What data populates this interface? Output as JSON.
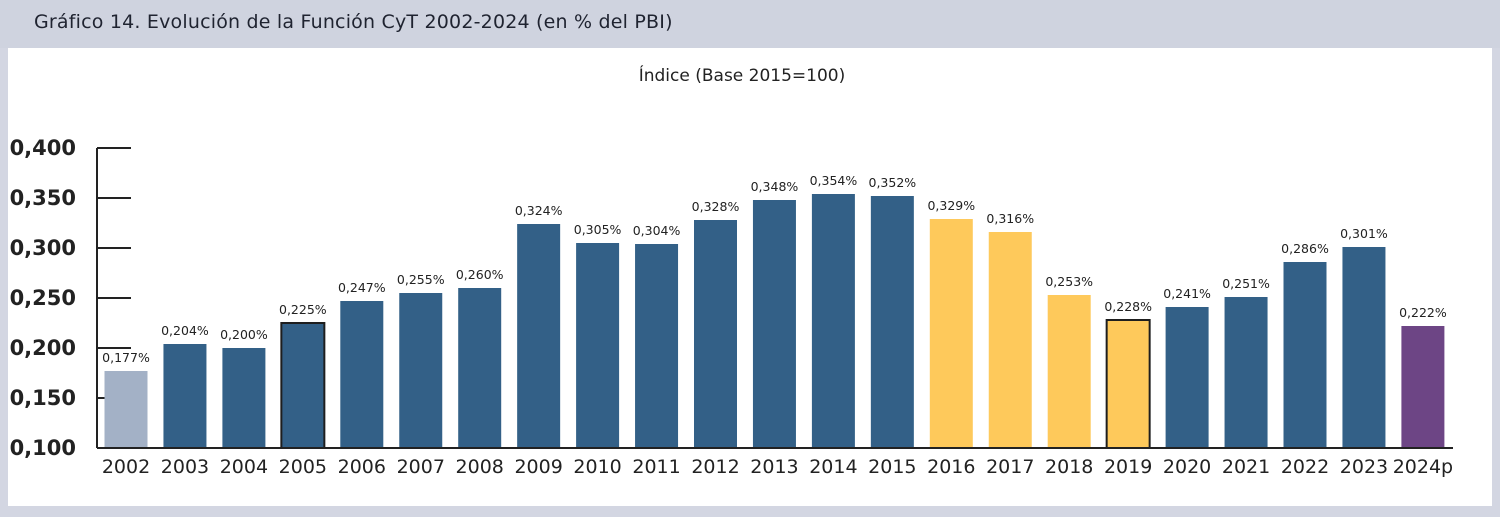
{
  "title": "Gráfico 14. Evolución de la Función CyT 2002-2024 (en % del PBI)",
  "chart_data": {
    "type": "bar",
    "subtitle": "Índice (Base 2015=100)",
    "categories": [
      "2002",
      "2003",
      "2004",
      "2005",
      "2006",
      "2007",
      "2008",
      "2009",
      "2010",
      "2011",
      "2012",
      "2013",
      "2014",
      "2015",
      "2016",
      "2017",
      "2018",
      "2019",
      "2020",
      "2021",
      "2022",
      "2023",
      "2024p"
    ],
    "values": [
      0.177,
      0.204,
      0.2,
      0.225,
      0.247,
      0.255,
      0.26,
      0.324,
      0.305,
      0.304,
      0.328,
      0.348,
      0.354,
      0.352,
      0.329,
      0.316,
      0.253,
      0.228,
      0.241,
      0.251,
      0.286,
      0.301,
      0.222
    ],
    "data_labels": [
      "0,177%",
      "0,204%",
      "0,200%",
      "0,225%",
      "0,247%",
      "0,255%",
      "0,260%",
      "0,324%",
      "0,305%",
      "0,304%",
      "0,328%",
      "0,348%",
      "0,354%",
      "0,352%",
      "0,329%",
      "0,316%",
      "0,253%",
      "0,228%",
      "0,241%",
      "0,251%",
      "0,286%",
      "0,301%",
      "0,222%"
    ],
    "bar_colors": [
      "#a3b1c6",
      "#336087",
      "#336087",
      "#336087",
      "#336087",
      "#336087",
      "#336087",
      "#336087",
      "#336087",
      "#336087",
      "#336087",
      "#336087",
      "#336087",
      "#336087",
      "#fec95b",
      "#fec95b",
      "#fec95b",
      "#fec95b",
      "#336087",
      "#336087",
      "#336087",
      "#336087",
      "#6d4585"
    ],
    "outlined_bars": [
      "2005",
      "2019"
    ],
    "ylim": [
      0.1,
      0.4
    ],
    "yticks": [
      0.1,
      0.15,
      0.2,
      0.25,
      0.3,
      0.35,
      0.4
    ],
    "ytick_labels": [
      "0,100",
      "0,150",
      "0,200",
      "0,250",
      "0,300",
      "0,350",
      "0,400"
    ],
    "grid": false,
    "legend": "none"
  }
}
